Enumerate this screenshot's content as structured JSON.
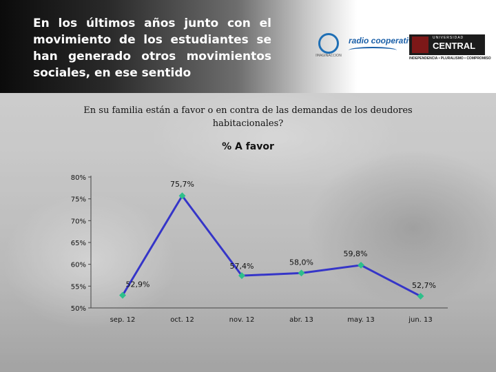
{
  "header": {
    "text": "En los últimos años junto con el movimiento de los estudiantes se han generado otros movimientos sociales, en ese sentido"
  },
  "logos": {
    "logo_a_icon": "globe-logo-icon",
    "logo_a_text": "IMAGINACCION",
    "logo_b_text": "radio cooperativa",
    "logo_c_top": "UNIVERSIDAD",
    "logo_c_name": "CENTRAL",
    "logo_c_sub": "INDEPENDENCIA • PLURALISMO • COMPROMISO"
  },
  "question": "En su familia están a favor o en contra de las demandas de los deudores habitacionales?",
  "chart_data": {
    "type": "line",
    "title": "% A favor",
    "categories": [
      "sep. 12",
      "oct. 12",
      "nov. 12",
      "abr. 13",
      "may. 13",
      "jun. 13"
    ],
    "series": [
      {
        "values": [
          52.9,
          75.7,
          57.4,
          58.0,
          59.8,
          52.7
        ],
        "labels": [
          "52,9%",
          "75,7%",
          "57,4%",
          "58,0%",
          "59,8%",
          "52,7%"
        ],
        "color": "#3535c8",
        "marker_color": "#2ebf8a"
      }
    ],
    "y_ticks": [
      "50%",
      "55%",
      "60%",
      "65%",
      "70%",
      "75%",
      "80%"
    ],
    "ylim": [
      50,
      80
    ],
    "grid": false,
    "legend": false
  }
}
